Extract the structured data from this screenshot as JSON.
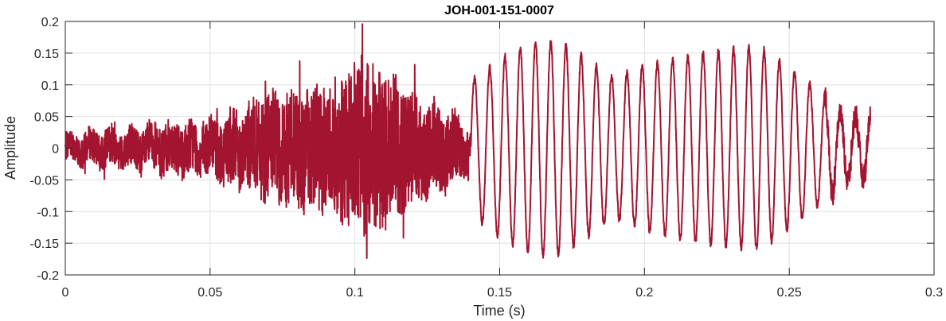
{
  "chart_data": {
    "type": "line",
    "title": "JOH-001-151-0007",
    "xlabel": "Time (s)",
    "ylabel": "Amplitude",
    "xlim": [
      0,
      0.3
    ],
    "ylim": [
      -0.2,
      0.2
    ],
    "x_ticks": [
      0,
      0.05,
      0.1,
      0.15,
      0.2,
      0.25,
      0.3
    ],
    "x_tick_labels": [
      "0",
      "0.05",
      "0.1",
      "0.15",
      "0.2",
      "0.25",
      "0.3"
    ],
    "y_ticks": [
      0.2,
      0.15,
      0.1,
      0.05,
      0,
      -0.05,
      -0.1,
      -0.15,
      -0.2
    ],
    "y_tick_labels": [
      "0.2",
      "0.15",
      "0.1",
      "0.05",
      "0",
      "-0.05",
      "-0.1",
      "-0.15",
      "-0.2"
    ],
    "grid": true,
    "line_color": "#A2142F",
    "series": [
      {
        "signal_end_time": 0.278,
        "noise_segment": [
          0,
          0.14
        ],
        "oscillation_segment": [
          0.14,
          0.27
        ],
        "oscillation_frequency_hz": 190,
        "oscillation_peaks": [
          {
            "t": 0.142,
            "amp": 0.11
          },
          {
            "t": 0.15,
            "amp": 0.14
          },
          {
            "t": 0.16,
            "amp": 0.165
          },
          {
            "t": 0.17,
            "amp": 0.17
          },
          {
            "t": 0.18,
            "amp": 0.14
          },
          {
            "t": 0.19,
            "amp": 0.11
          },
          {
            "t": 0.2,
            "amp": 0.13
          },
          {
            "t": 0.21,
            "amp": 0.14
          },
          {
            "t": 0.22,
            "amp": 0.15
          },
          {
            "t": 0.23,
            "amp": 0.155
          },
          {
            "t": 0.24,
            "amp": 0.16
          },
          {
            "t": 0.25,
            "amp": 0.125
          },
          {
            "t": 0.26,
            "amp": 0.09
          },
          {
            "t": 0.27,
            "amp": 0.05
          }
        ],
        "noise_envelope": [
          {
            "t": 0.0,
            "amp": 0.03
          },
          {
            "t": 0.03,
            "amp": 0.05
          },
          {
            "t": 0.05,
            "amp": 0.06
          },
          {
            "t": 0.07,
            "amp": 0.11
          },
          {
            "t": 0.09,
            "amp": 0.14
          },
          {
            "t": 0.105,
            "amp": 0.185
          },
          {
            "t": 0.12,
            "amp": 0.12
          },
          {
            "t": 0.135,
            "amp": 0.07
          },
          {
            "t": 0.14,
            "amp": 0.04
          }
        ]
      }
    ]
  }
}
